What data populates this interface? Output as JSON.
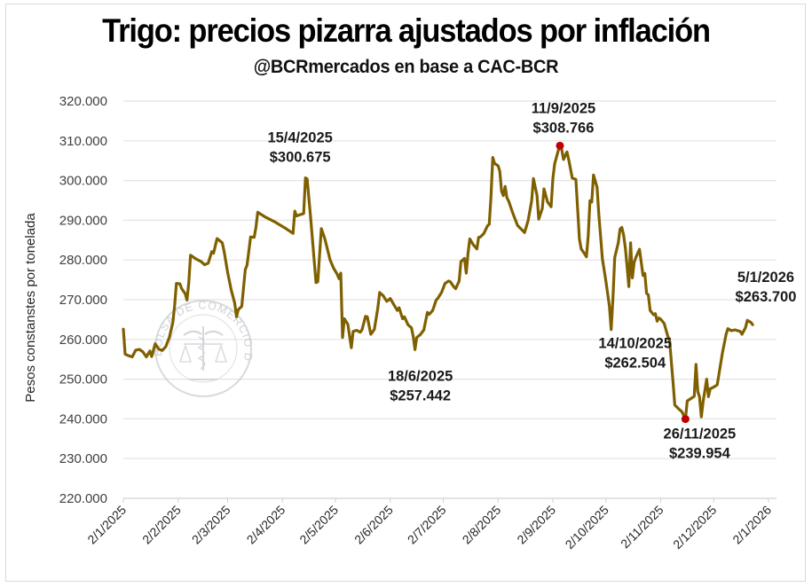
{
  "chart_data": {
    "type": "line",
    "title": "Trigo: precios pizarra ajustados por inflación",
    "subtitle": "@BCRmercados en base a CAC-BCR",
    "xlabel": "",
    "ylabel": "Pesos constanstes por tonelada",
    "ylim": [
      220000,
      320000
    ],
    "ytick_values": [
      220000,
      230000,
      240000,
      250000,
      260000,
      270000,
      280000,
      290000,
      300000,
      310000,
      320000
    ],
    "ytick_labels": [
      "220.000",
      "230.000",
      "240.000",
      "250.000",
      "260.000",
      "270.000",
      "280.000",
      "290.000",
      "300.000",
      "310.000",
      "320.000"
    ],
    "x_start": "2025-01-02",
    "x_range_days": [
      0,
      369
    ],
    "xtick_days": [
      0,
      31,
      59,
      90,
      120,
      151,
      181,
      212,
      243,
      273,
      304,
      334,
      365
    ],
    "xtick_labels": [
      "2/1/2025",
      "2/2/2025",
      "2/3/2025",
      "2/4/2025",
      "2/5/2025",
      "2/6/2025",
      "2/7/2025",
      "2/8/2025",
      "2/9/2025",
      "2/10/2025",
      "2/11/2025",
      "2/12/2025",
      "2/1/2026"
    ],
    "grid": true,
    "line_color": "#7f6000",
    "marker_color": "#c00000",
    "series": [
      {
        "name": "Trigo precio pizarra ajustado por inflación",
        "x_unit": "days since 2/1/2025",
        "points": [
          [
            0,
            262600
          ],
          [
            1,
            256300
          ],
          [
            3,
            255900
          ],
          [
            5,
            255600
          ],
          [
            7,
            257300
          ],
          [
            9,
            257500
          ],
          [
            11,
            256900
          ],
          [
            13,
            255600
          ],
          [
            15,
            257100
          ],
          [
            16,
            255700
          ],
          [
            18,
            258900
          ],
          [
            20,
            257600
          ],
          [
            22,
            257200
          ],
          [
            24,
            258200
          ],
          [
            26,
            260500
          ],
          [
            28,
            264300
          ],
          [
            29,
            268600
          ],
          [
            30,
            274100
          ],
          [
            32,
            274000
          ],
          [
            33,
            272800
          ],
          [
            35,
            271500
          ],
          [
            36,
            269900
          ],
          [
            37,
            274200
          ],
          [
            38,
            281200
          ],
          [
            41,
            280300
          ],
          [
            44,
            279600
          ],
          [
            46,
            278800
          ],
          [
            48,
            279200
          ],
          [
            50,
            282100
          ],
          [
            51,
            281700
          ],
          [
            53,
            285400
          ],
          [
            56,
            284300
          ],
          [
            57,
            282200
          ],
          [
            59,
            276900
          ],
          [
            61,
            272500
          ],
          [
            63,
            269100
          ],
          [
            64,
            265700
          ],
          [
            65,
            267500
          ],
          [
            67,
            268300
          ],
          [
            69,
            277600
          ],
          [
            70,
            278700
          ],
          [
            72,
            285800
          ],
          [
            74,
            285700
          ],
          [
            75,
            288200
          ],
          [
            76,
            292000
          ],
          [
            80,
            290900
          ],
          [
            86,
            289500
          ],
          [
            92,
            287900
          ],
          [
            96,
            286700
          ],
          [
            97,
            292300
          ],
          [
            98,
            291100
          ],
          [
            100,
            291400
          ],
          [
            102,
            291700
          ],
          [
            103,
            300675
          ],
          [
            104,
            300400
          ],
          [
            106,
            290500
          ],
          [
            109,
            274300
          ],
          [
            110,
            274500
          ],
          [
            112,
            287900
          ],
          [
            114,
            285300
          ],
          [
            117,
            280000
          ],
          [
            119,
            277900
          ],
          [
            121,
            276400
          ],
          [
            122,
            275300
          ],
          [
            123,
            276700
          ],
          [
            124,
            260500
          ],
          [
            125,
            265200
          ],
          [
            127,
            263800
          ],
          [
            129,
            257900
          ],
          [
            130,
            262000
          ],
          [
            132,
            262300
          ],
          [
            134,
            261800
          ],
          [
            135,
            262400
          ],
          [
            137,
            265800
          ],
          [
            138,
            265700
          ],
          [
            140,
            261300
          ],
          [
            142,
            262500
          ],
          [
            144,
            268000
          ],
          [
            145,
            271800
          ],
          [
            147,
            271000
          ],
          [
            149,
            269600
          ],
          [
            151,
            270300
          ],
          [
            153,
            268800
          ],
          [
            155,
            267300
          ],
          [
            156,
            268000
          ],
          [
            158,
            265200
          ],
          [
            159,
            265700
          ],
          [
            161,
            263700
          ],
          [
            163,
            262900
          ],
          [
            164,
            260700
          ],
          [
            165,
            257442
          ],
          [
            166,
            260500
          ],
          [
            168,
            261200
          ],
          [
            170,
            262400
          ],
          [
            172,
            266800
          ],
          [
            173,
            266300
          ],
          [
            175,
            267300
          ],
          [
            177,
            269900
          ],
          [
            178,
            270400
          ],
          [
            180,
            271800
          ],
          [
            182,
            274100
          ],
          [
            184,
            274700
          ],
          [
            185,
            274500
          ],
          [
            187,
            273200
          ],
          [
            188,
            272800
          ],
          [
            190,
            274700
          ],
          [
            191,
            279600
          ],
          [
            193,
            280400
          ],
          [
            194,
            276700
          ],
          [
            195,
            281700
          ],
          [
            196,
            285300
          ],
          [
            198,
            283800
          ],
          [
            200,
            282800
          ],
          [
            201,
            285700
          ],
          [
            202,
            285800
          ],
          [
            204,
            286700
          ],
          [
            206,
            288600
          ],
          [
            207,
            289000
          ],
          [
            208,
            296100
          ],
          [
            209,
            305800
          ],
          [
            210,
            304300
          ],
          [
            212,
            303700
          ],
          [
            213,
            302300
          ],
          [
            214,
            297300
          ],
          [
            215,
            296200
          ],
          [
            216,
            298500
          ],
          [
            217,
            295700
          ],
          [
            218,
            294800
          ],
          [
            220,
            292200
          ],
          [
            221,
            291000
          ],
          [
            223,
            288700
          ],
          [
            225,
            287800
          ],
          [
            227,
            286900
          ],
          [
            229,
            289900
          ],
          [
            231,
            294900
          ],
          [
            232,
            300500
          ],
          [
            234,
            296300
          ],
          [
            235,
            290300
          ],
          [
            237,
            293000
          ],
          [
            238,
            297900
          ],
          [
            240,
            294600
          ],
          [
            242,
            293400
          ],
          [
            243,
            300500
          ],
          [
            244,
            304200
          ],
          [
            246,
            307500
          ],
          [
            247,
            308766
          ],
          [
            248,
            307800
          ],
          [
            249,
            305300
          ],
          [
            251,
            307200
          ],
          [
            252,
            305200
          ],
          [
            254,
            300600
          ],
          [
            256,
            300300
          ],
          [
            257,
            292900
          ],
          [
            258,
            285300
          ],
          [
            259,
            282800
          ],
          [
            261,
            281500
          ],
          [
            262,
            280800
          ],
          [
            263,
            286000
          ],
          [
            264,
            294900
          ],
          [
            265,
            294600
          ],
          [
            266,
            301400
          ],
          [
            268,
            298300
          ],
          [
            269,
            291400
          ],
          [
            270,
            285900
          ],
          [
            271,
            280300
          ],
          [
            273,
            274600
          ],
          [
            275,
            268400
          ],
          [
            276,
            262504
          ],
          [
            277,
            270400
          ],
          [
            278,
            280600
          ],
          [
            280,
            284300
          ],
          [
            281,
            287800
          ],
          [
            282,
            288200
          ],
          [
            283,
            286300
          ],
          [
            284,
            283000
          ],
          [
            285,
            278200
          ],
          [
            286,
            273300
          ],
          [
            287,
            284300
          ],
          [
            288,
            275500
          ],
          [
            289,
            279400
          ],
          [
            290,
            280700
          ],
          [
            292,
            282700
          ],
          [
            294,
            276100
          ],
          [
            295,
            276600
          ],
          [
            296,
            271600
          ],
          [
            297,
            271200
          ],
          [
            298,
            267300
          ],
          [
            300,
            266200
          ],
          [
            301,
            266500
          ],
          [
            302,
            264600
          ],
          [
            303,
            265400
          ],
          [
            304,
            265100
          ],
          [
            306,
            264000
          ],
          [
            308,
            260800
          ],
          [
            309,
            259800
          ],
          [
            311,
            249300
          ],
          [
            312,
            243500
          ],
          [
            314,
            242600
          ],
          [
            316,
            241800
          ],
          [
            318,
            239954
          ],
          [
            319,
            244500
          ],
          [
            320,
            244800
          ],
          [
            322,
            245400
          ],
          [
            323,
            245700
          ],
          [
            324,
            253700
          ],
          [
            325,
            246900
          ],
          [
            326,
            245500
          ],
          [
            327,
            240500
          ],
          [
            328,
            244300
          ],
          [
            330,
            250000
          ],
          [
            331,
            245600
          ],
          [
            332,
            247600
          ],
          [
            334,
            248000
          ],
          [
            336,
            248600
          ],
          [
            337,
            251300
          ],
          [
            339,
            256800
          ],
          [
            340,
            259000
          ],
          [
            341,
            261300
          ],
          [
            342,
            262700
          ],
          [
            344,
            262200
          ],
          [
            346,
            262400
          ],
          [
            349,
            262000
          ],
          [
            350,
            261300
          ],
          [
            352,
            263000
          ],
          [
            353,
            264800
          ],
          [
            355,
            264300
          ],
          [
            356,
            263700
          ]
        ]
      }
    ],
    "highlighted_points": [
      {
        "day": 247,
        "value": 308766,
        "date": "11/9/2025",
        "label": "$308.766"
      },
      {
        "day": 318,
        "value": 239954,
        "date": "26/11/2025",
        "label": "$239.954"
      }
    ],
    "annotations": [
      {
        "date": "15/4/2025",
        "value_label": "$300.675",
        "day": 103,
        "value": 300675,
        "placement": "above-left"
      },
      {
        "date": "11/9/2025",
        "value_label": "$308.766",
        "day": 247,
        "value": 308766,
        "placement": "above"
      },
      {
        "date": "18/6/2025",
        "value_label": "$257.442",
        "day": 165,
        "value": 257442,
        "placement": "below"
      },
      {
        "date": "14/10/2025",
        "value_label": "$262.504",
        "day": 276,
        "value": 262504,
        "placement": "below"
      },
      {
        "date": "26/11/2025",
        "value_label": "$239.954",
        "day": 318,
        "value": 239954,
        "placement": "below"
      },
      {
        "date": "5/1/2026",
        "value_label": "$263.700",
        "day": 368,
        "value": 263700,
        "placement": "above"
      }
    ],
    "watermark": "BOLSA DE COMERCIO DE ROSARIO"
  }
}
